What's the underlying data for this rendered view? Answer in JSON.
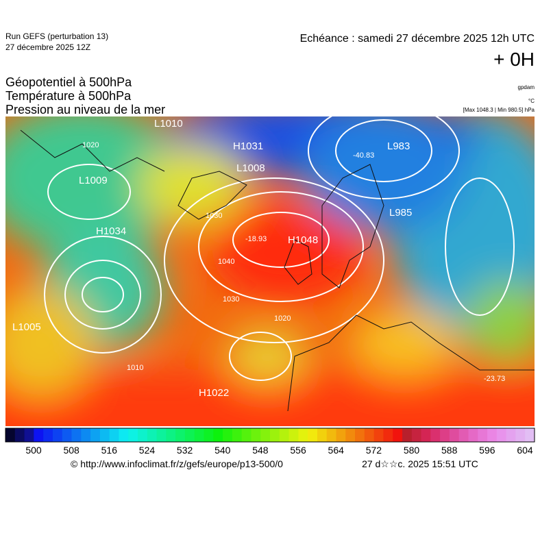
{
  "header": {
    "run": "Run GEFS (perturbation 13)",
    "run_date": "27 décembre 2025 12Z",
    "echeance": "Echéance : samedi 27 décembre 2025 12h UTC",
    "offset": "+ 0H"
  },
  "titles": [
    "Géopotentiel à 500hPa",
    "Température à 500hPa",
    "Pression au niveau de la mer"
  ],
  "units": {
    "geopotential": "gpdam",
    "temperature": "°C",
    "pressure_range": "[Max 1048.3 | Min 980.5] hPa"
  },
  "map_labels": [
    "L1010",
    "H1031",
    "L1008",
    "L983",
    "-40.83",
    "L1009",
    "H1034",
    "H1048",
    "-18.93",
    "L985",
    "L1005",
    "H1022",
    "-23.73",
    "1020",
    "1030",
    "1040",
    "1030",
    "1020",
    "1010"
  ],
  "colorbar": {
    "ticks": [
      500,
      508,
      516,
      524,
      532,
      540,
      548,
      556,
      564,
      572,
      580,
      588,
      596,
      604
    ]
  },
  "footer": {
    "url": "© http://www.infoclimat.fr/z/gefs/europe/p13-500/0",
    "timestamp": "27 d☆☆c. 2025 15:51 UTC"
  }
}
